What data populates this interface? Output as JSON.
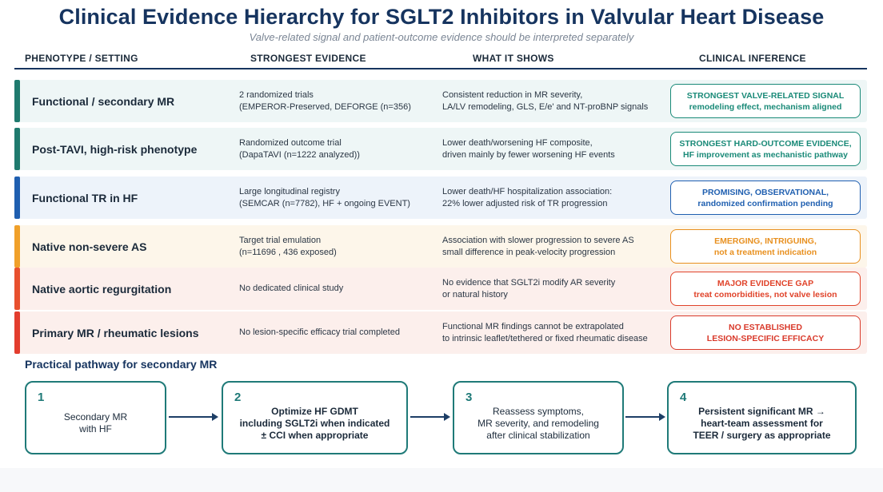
{
  "title": "Clinical Evidence Hierarchy for SGLT2 Inhibitors in Valvular Heart Disease",
  "subtitle": "Valve-related signal and patient-outcome evidence should be interpreted separately",
  "columns": {
    "phenotype": "PHENOTYPE / SETTING",
    "evidence": "STRONGEST EVIDENCE",
    "shows": "WHAT IT SHOWS",
    "inference": "CLINICAL INFERENCE"
  },
  "rows": [
    {
      "phenotype": "Functional / secondary MR",
      "evidence": [
        "2 randomized trials",
        "(EMPEROR-Preserved, DEFORGE (n=356)"
      ],
      "shows": [
        "Consistent reduction in MR severity,",
        "LA/LV remodeling, GLS, E/e' and NT-proBNP signals"
      ],
      "inference": [
        "STRONGEST VALVE-RELATED SIGNAL",
        "remodeling effect, mechanism aligned"
      ],
      "accent": "#1f7a6e",
      "bg": "#eef6f6",
      "inf_color": "#1a8a78"
    },
    {
      "phenotype": "Post-TAVI, high-risk phenotype",
      "evidence": [
        "Randomized outcome trial",
        "(DapaTAVI (n=1222 analyzed))"
      ],
      "shows": [
        "Lower death/worsening HF composite,",
        "driven mainly by fewer worsening HF events"
      ],
      "inference": [
        "STRONGEST HARD-OUTCOME EVIDENCE,",
        "HF improvement as mechanistic pathway"
      ],
      "accent": "#1f7a6e",
      "bg": "#eef6f6",
      "inf_color": "#1a8a78"
    },
    {
      "phenotype": "Functional TR in HF",
      "evidence": [
        "Large longitudinal registry",
        "(SEMCAR (n=7782), HF + ongoing EVENT)"
      ],
      "shows": [
        "Lower death/HF hospitalization association:",
        "22% lower adjusted risk of TR progression"
      ],
      "inference": [
        "PROMISING, OBSERVATIONAL,",
        "randomized confirmation pending"
      ],
      "accent": "#1f5fb0",
      "bg": "#edf3fa",
      "inf_color": "#1f5fb0"
    },
    {
      "phenotype": "Native non-severe AS",
      "evidence": [
        "Target trial emulation",
        "(n=11696 , 436 exposed)"
      ],
      "shows": [
        "Association with slower progression to severe AS",
        "small difference in peak-velocity progression"
      ],
      "inference": [
        "EMERGING, INTRIGUING,",
        "not a treatment indication"
      ],
      "accent": "#f0a02a",
      "bg": "#fdf6ea",
      "inf_color": "#e8901f"
    },
    {
      "phenotype": "Native aortic regurgitation",
      "evidence": [
        "No dedicated clinical study"
      ],
      "shows": [
        "No evidence that SGLT2i modify AR severity",
        "or natural history"
      ],
      "inference": [
        "MAJOR EVIDENCE GAP",
        "treat comorbidities, not valve lesion"
      ],
      "accent": "#e8502e",
      "bg": "#fcefec",
      "inf_color": "#e0432a"
    },
    {
      "phenotype": "Primary MR / rheumatic lesions",
      "evidence": [
        "No lesion-specific efficacy trial completed"
      ],
      "shows": [
        "Functional MR findings cannot be extrapolated",
        "to intrinsic leaflet/tethered or fixed rheumatic disease"
      ],
      "inference": [
        "NO ESTABLISHED",
        "LESION-SPECIFIC EFFICACY"
      ],
      "accent": "#e33d2e",
      "bg": "#fcefec",
      "inf_color": "#d93a2b"
    }
  ],
  "pathway": {
    "title": "Practical pathway for secondary MR",
    "steps": [
      {
        "num": "1",
        "lines": [
          "Secondary MR",
          "with HF"
        ],
        "bold": false
      },
      {
        "num": "2",
        "lines": [
          "Optimize HF GDMT",
          "including SGLT2i when indicated",
          "± CCI when appropriate"
        ],
        "bold": true
      },
      {
        "num": "3",
        "lines": [
          "Reassess symptoms,",
          "MR severity, and remodeling",
          "after clinical stabilization"
        ],
        "bold": false
      },
      {
        "num": "4",
        "lines": [
          "Persistent significant MR →",
          "heart-team assessment for",
          "TEER / surgery as appropriate"
        ],
        "bold": true
      }
    ]
  }
}
